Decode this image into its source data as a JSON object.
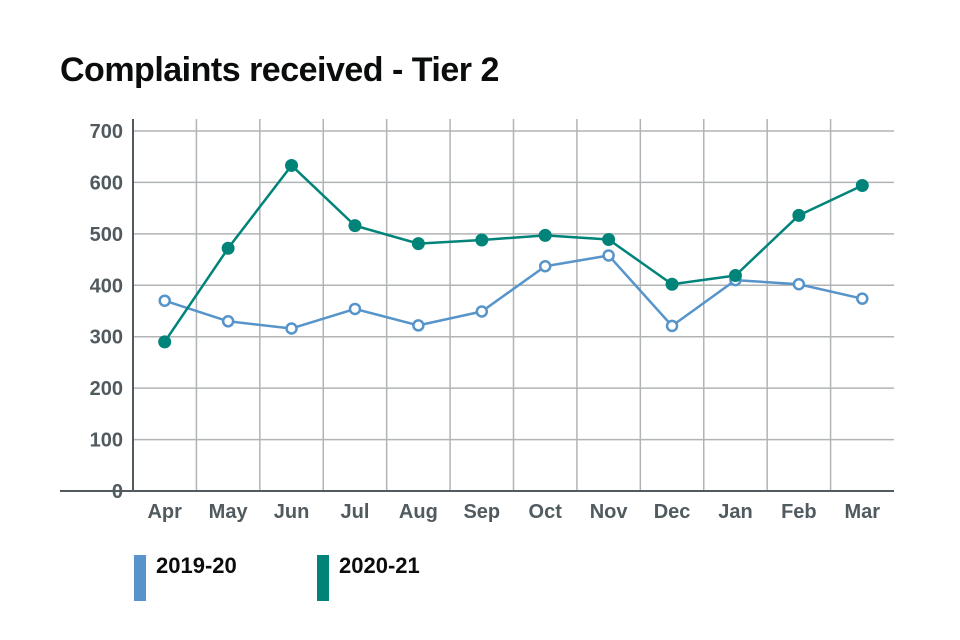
{
  "title": "Complaints received - Tier 2",
  "chart_data": {
    "type": "line",
    "title": "Complaints received - Tier 2",
    "xlabel": "",
    "ylabel": "",
    "categories": [
      "Apr",
      "May",
      "Jun",
      "Jul",
      "Aug",
      "Sep",
      "Oct",
      "Nov",
      "Dec",
      "Jan",
      "Feb",
      "Mar"
    ],
    "ylim": [
      0,
      700
    ],
    "yticks": [
      0,
      100,
      200,
      300,
      400,
      500,
      600,
      700
    ],
    "grid": true,
    "legend_position": "bottom-left",
    "series": [
      {
        "name": "2019-20",
        "color": "#5694ca",
        "marker": "hollow-circle",
        "values": [
          370,
          330,
          316,
          354,
          322,
          349,
          437,
          458,
          321,
          410,
          402,
          374
        ]
      },
      {
        "name": "2020-21",
        "color": "#00847a",
        "marker": "filled-circle",
        "values": [
          290,
          472,
          633,
          516,
          481,
          488,
          497,
          489,
          402,
          419,
          536,
          594
        ]
      }
    ]
  }
}
